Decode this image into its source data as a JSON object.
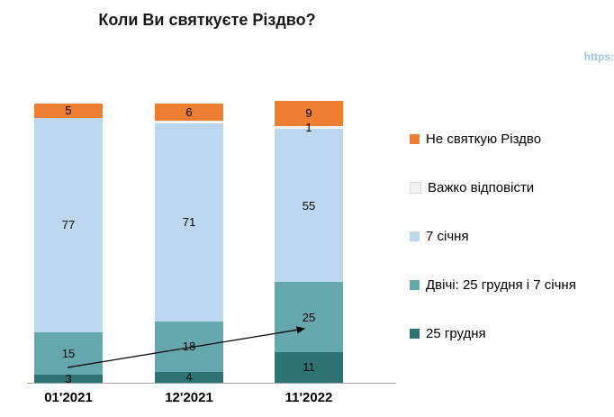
{
  "title": "Коли Ви святкуєте Різдво?",
  "watermark": "https:",
  "chart_data": {
    "type": "bar",
    "stacked": true,
    "title": "Коли Ви святкуєте Різдво?",
    "categories": [
      "01'2021",
      "12'2021",
      "11'2022"
    ],
    "series": [
      {
        "name": "25 грудня",
        "color": "#2e7373",
        "values": [
          3,
          4,
          11
        ],
        "labels": [
          "3",
          "4",
          "11"
        ]
      },
      {
        "name": "Двічі: 25 грудня і 7 січня",
        "color": "#64a7ad",
        "values": [
          15,
          18,
          25
        ],
        "labels": [
          "15",
          "18",
          "25"
        ]
      },
      {
        "name": "7 січня",
        "color": "#bdd7ee",
        "values": [
          77,
          71,
          55
        ],
        "labels": [
          "77",
          "71",
          "55"
        ]
      },
      {
        "name": "Важко відповісти",
        "color": "#f2f2f2",
        "values": [
          0,
          1,
          1
        ],
        "labels": [
          "",
          "",
          "1"
        ]
      },
      {
        "name": "Не святкую Різдво",
        "color": "#ed7d31",
        "values": [
          5,
          6,
          9
        ],
        "labels": [
          "5",
          "6",
          "9"
        ]
      }
    ],
    "ylim": [
      0,
      100
    ],
    "legend_position": "right",
    "grid": false,
    "annotation": {
      "type": "arrow",
      "from_category": "01'2021",
      "from_series": "25 грудня",
      "to_category": "11'2022",
      "to_series": "Двічі: 25 грудня і 7 січня"
    }
  },
  "legend": {
    "items": [
      {
        "label": "Не святкую Різдво",
        "color": "#ed7d31"
      },
      {
        "label": "Важко відповісти",
        "color": "#f2f2f2"
      },
      {
        "label": "7 січня",
        "color": "#bdd7ee"
      },
      {
        "label": "Двічі: 25 грудня і 7 січня",
        "color": "#64a7ad"
      },
      {
        "label": "25 грудня",
        "color": "#2e7373"
      }
    ]
  }
}
